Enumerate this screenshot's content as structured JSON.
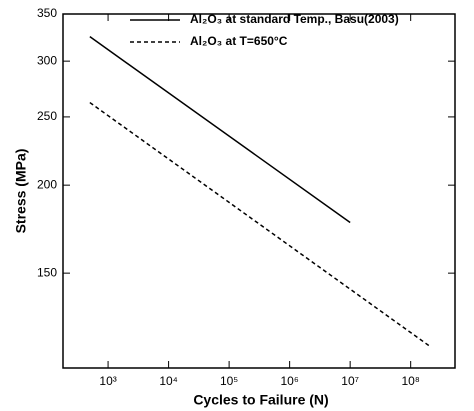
{
  "chart_data": {
    "type": "line",
    "x_label": "Cycles to Failure (N)",
    "y_label": "Stress (MPa)",
    "xscale": "log",
    "yscale": "log",
    "xlim": [
      180,
      540000000
    ],
    "ylim": [
      110,
      350
    ],
    "xticks": [
      {
        "value": 1000,
        "label": "10³"
      },
      {
        "value": 10000,
        "label": "10⁴"
      },
      {
        "value": 100000,
        "label": "10⁵"
      },
      {
        "value": 1000000,
        "label": "10⁶"
      },
      {
        "value": 10000000,
        "label": "10⁷"
      },
      {
        "value": 100000000,
        "label": "10⁸"
      }
    ],
    "yticks": [
      150,
      200,
      250,
      300,
      350
    ],
    "legend": "top-right",
    "series": [
      {
        "name": "Al₂O₃ at standard Temp., Basu(2003)",
        "color": "#000000",
        "dash": "solid",
        "x": [
          500,
          10000000
        ],
        "values": [
          325,
          177
        ]
      },
      {
        "name": "Al₂O₃ at T=650°C",
        "color": "#000000",
        "dash": "dashed",
        "x": [
          500,
          210000000
        ],
        "values": [
          262,
          118
        ]
      }
    ]
  }
}
